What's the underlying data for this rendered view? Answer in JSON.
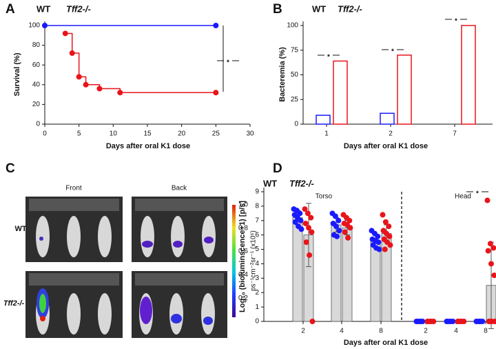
{
  "chart_data": [
    {
      "type": "line",
      "panel_label": "A",
      "step": true,
      "xlabel": "Days after oral K1 dose",
      "ylabel": "Survival (%)",
      "xlim": [
        0,
        30
      ],
      "xticks": [
        0,
        5,
        10,
        15,
        20,
        25,
        30
      ],
      "ylim": [
        0,
        100
      ],
      "yticks": [
        0,
        20,
        40,
        60,
        80,
        100
      ],
      "series": [
        {
          "name": "WT",
          "color": "#1a1aff",
          "x": [
            0,
            25
          ],
          "values": [
            100,
            100
          ]
        },
        {
          "name": "Tff2-/-",
          "color": "#e8141a",
          "x": [
            3,
            4,
            5,
            6,
            8,
            11,
            25
          ],
          "values": [
            92,
            72,
            48,
            40,
            36,
            32,
            32
          ]
        }
      ],
      "annotations": [
        "*"
      ]
    },
    {
      "type": "bar",
      "panel_label": "B",
      "xlabel": "Days after oral K1 dose",
      "ylabel": "Bacteremia (%)",
      "categories": [
        "1",
        "2",
        "7"
      ],
      "ylim": [
        0,
        100
      ],
      "yticks": [
        0,
        25,
        50,
        75,
        100
      ],
      "series": [
        {
          "name": "WT",
          "color": "#1a1aff",
          "values": [
            9,
            11,
            0
          ]
        },
        {
          "name": "Tff2-/-",
          "color": "#e8141a",
          "values": [
            64,
            70,
            100
          ]
        }
      ],
      "annotations": [
        "*",
        "*",
        "*"
      ]
    },
    {
      "type": "bar",
      "panel_label": "D",
      "bar_fill": "#d9d9d9",
      "xlabel": "Days after oral K1 dose",
      "ylabel": "Log₁₀ (bioluminscence+1) [p/s]",
      "categories": [
        "2",
        "4",
        "8",
        "2",
        "4",
        "8"
      ],
      "groups": [
        "Torso",
        "Head"
      ],
      "ylim": [
        0,
        9
      ],
      "yticks": [
        0,
        1,
        2,
        3,
        4,
        5,
        6,
        7,
        8,
        9
      ],
      "series": [
        {
          "name": "WT",
          "color": "#1a1aff",
          "values": [
            7.2,
            6.7,
            5.6,
            0,
            0,
            0
          ],
          "errors": [
            0.5,
            0.5,
            0.4,
            0,
            0,
            0
          ],
          "points": [
            [
              7.8,
              7.7,
              7.5,
              7.4,
              7.2,
              7.0,
              6.9,
              6.6,
              6.4
            ],
            [
              7.5,
              7.3,
              7.0,
              6.8,
              6.6,
              6.3,
              6.0,
              5.9
            ],
            [
              6.3,
              6.1,
              5.9,
              5.7,
              5.6,
              5.5,
              5.3,
              5.1,
              5.0
            ],
            [
              0,
              0,
              0,
              0,
              0
            ],
            [
              0,
              0,
              0,
              0,
              0
            ],
            [
              0,
              0,
              0,
              0,
              0
            ]
          ]
        },
        {
          "name": "Tff2-/-",
          "color": "#e8141a",
          "values": [
            6.0,
            6.5,
            6.1,
            0,
            0,
            2.5
          ],
          "errors": [
            2.2,
            0.5,
            0.6,
            0,
            0,
            3.0
          ],
          "points": [
            [
              7.8,
              7.5,
              7.2,
              6.8,
              6.5,
              6.2,
              5.5,
              4.6,
              0
            ],
            [
              7.4,
              7.2,
              7.0,
              6.8,
              6.7,
              6.5,
              6.2,
              5.8
            ],
            [
              7.4,
              6.9,
              6.6,
              6.3,
              6.1,
              5.9,
              5.7,
              5.5,
              5.3,
              5.0
            ],
            [
              0,
              0,
              0,
              0,
              0
            ],
            [
              0,
              0,
              0,
              0,
              0
            ],
            [
              8.4,
              5.4,
              5.1,
              4.9,
              4.0,
              3.2,
              0,
              0,
              0,
              0
            ]
          ]
        }
      ],
      "annotations": [
        "*"
      ]
    }
  ],
  "image_panel": {
    "panel_label": "C",
    "columns": [
      "Front",
      "Back"
    ],
    "rows": [
      "WT",
      "Tff2-/-"
    ],
    "colorbar": {
      "label": "ps⁻¹cm⁻²sr⁻¹ (x10⁶)",
      "lim": [
        0,
        1
      ],
      "ticks": [
        0.2,
        0.4,
        0.6,
        0.8,
        {
          "value": 1,
          "label": "1.0"
        }
      ]
    }
  }
}
